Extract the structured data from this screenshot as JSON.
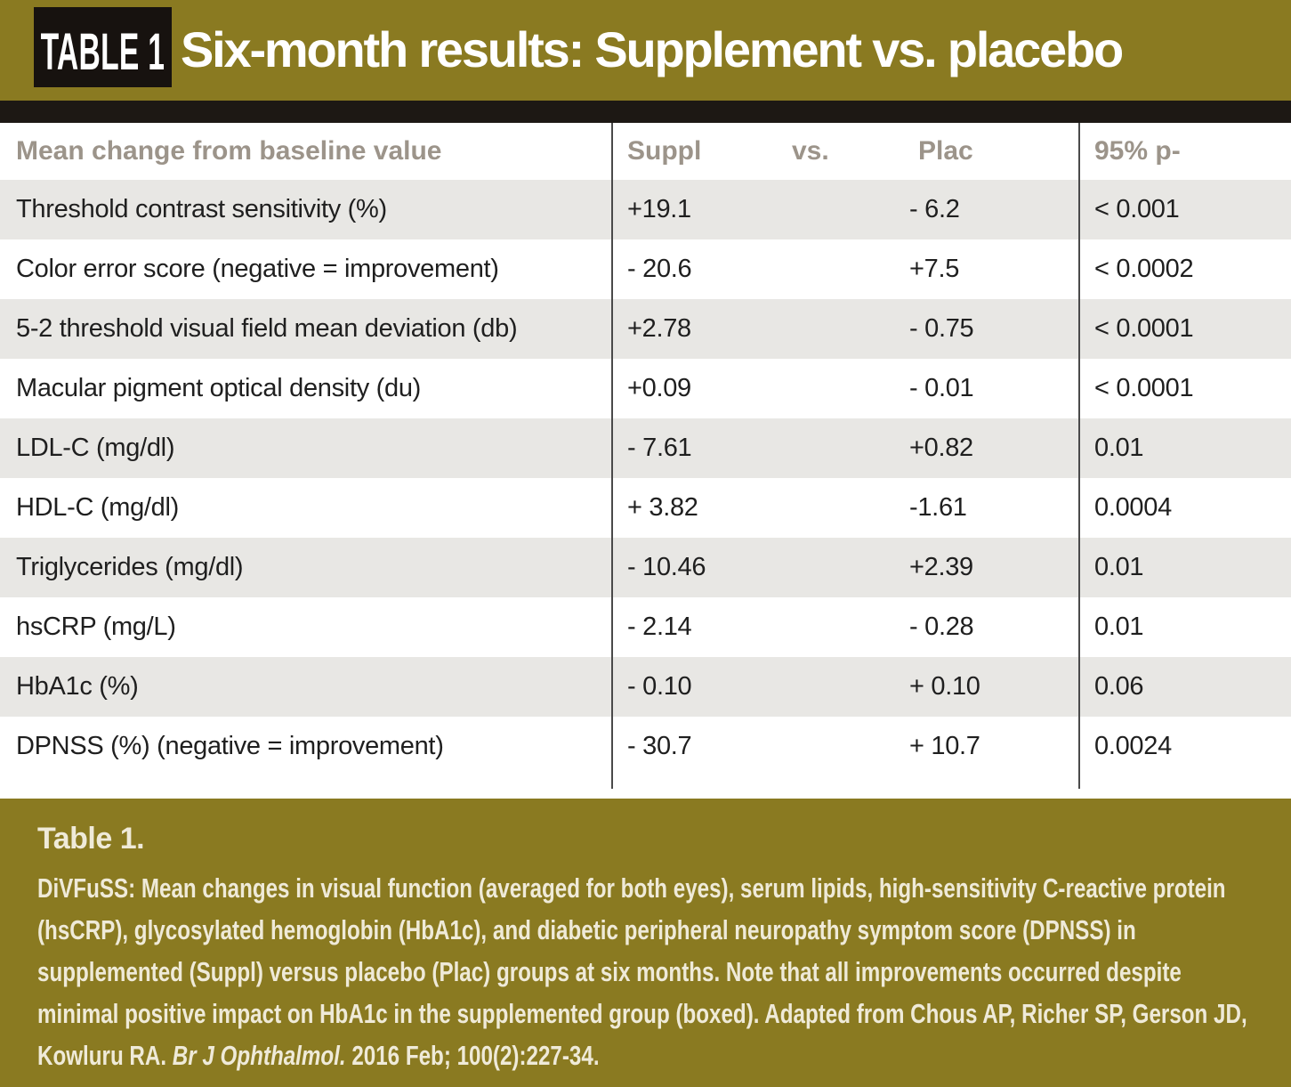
{
  "banner": {
    "tag": "TABLE 1",
    "title": "Six-month results: Supplement vs. placebo"
  },
  "table": {
    "col1_header": "Mean change from baseline value",
    "col2_header": {
      "suppl": "Suppl",
      "vs": "vs.",
      "plac": "Plac"
    },
    "col3_header": "95% p-",
    "rows": [
      {
        "label": "Threshold contrast sensitivity (%)",
        "suppl": "+19.1",
        "plac": "- 6.2",
        "p": "< 0.001"
      },
      {
        "label": "Color error score (negative = improvement)",
        "suppl": "- 20.6",
        "plac": "+7.5",
        "p": "< 0.0002"
      },
      {
        "label": "5-2 threshold visual field mean deviation (db)",
        "suppl": "+2.78",
        "plac": "- 0.75",
        "p": "< 0.0001"
      },
      {
        "label": "Macular pigment optical density (du)",
        "suppl": "+0.09",
        "plac": "- 0.01",
        "p": "< 0.0001"
      },
      {
        "label": "LDL-C (mg/dl)",
        "suppl": "- 7.61",
        "plac": "+0.82",
        "p": "0.01"
      },
      {
        "label": "HDL-C (mg/dl)",
        "suppl": "+ 3.82",
        "plac": "-1.61",
        "p": "0.0004"
      },
      {
        "label": "Triglycerides (mg/dl)",
        "suppl": "- 10.46",
        "plac": "+2.39",
        "p": "0.01"
      },
      {
        "label": "hsCRP (mg/L)",
        "suppl": "- 2.14",
        "plac": "- 0.28",
        "p": "0.01"
      },
      {
        "label": "HbA1c (%)",
        "suppl": "- 0.10",
        "plac": "+ 0.10",
        "p": "0.06"
      },
      {
        "label": "DPNSS (%) (negative = improvement)",
        "suppl": "- 30.7",
        "plac": "+ 10.7",
        "p": "0.0024"
      }
    ]
  },
  "chart_data": {
    "type": "table",
    "title": "Six-month results: Supplement vs. placebo",
    "columns": [
      "Mean change from baseline value",
      "Suppl",
      "Plac",
      "95% p-"
    ],
    "rows": [
      [
        "Threshold contrast sensitivity (%)",
        "+19.1",
        "- 6.2",
        "< 0.001"
      ],
      [
        "Color error score (negative = improvement)",
        "- 20.6",
        "+7.5",
        "< 0.0002"
      ],
      [
        "5-2 threshold visual field mean deviation (db)",
        "+2.78",
        "- 0.75",
        "< 0.0001"
      ],
      [
        "Macular pigment optical density (du)",
        "+0.09",
        "- 0.01",
        "< 0.0001"
      ],
      [
        "LDL-C (mg/dl)",
        "- 7.61",
        "+0.82",
        "0.01"
      ],
      [
        "HDL-C (mg/dl)",
        "+ 3.82",
        "-1.61",
        "0.0004"
      ],
      [
        "Triglycerides (mg/dl)",
        "- 10.46",
        "+2.39",
        "0.01"
      ],
      [
        "hsCRP (mg/L)",
        "- 2.14",
        "- 0.28",
        "0.01"
      ],
      [
        "HbA1c (%)",
        "- 0.10",
        "+ 0.10",
        "0.06"
      ],
      [
        "DPNSS (%) (negative = improvement)",
        "- 30.7",
        "+ 10.7",
        "0.0024"
      ]
    ]
  },
  "caption": {
    "heading": "Table 1.",
    "body_before": "DiVFuSS: Mean changes in visual function (averaged for both eyes), serum lipids, high-sensitivity C-reactive protein (hsCRP), glycosylated hemoglobin (HbA1c), and diabetic peripheral neuropathy symptom score (DPNSS) in supplemented (Suppl) versus placebo (Plac) groups at six months.  Note that all improvements occurred despite minimal positive impact on HbA1c in the supplemented group (boxed).  Adapted from Chous AP, Richer SP, Gerson JD, Kowluru RA. ",
    "journal": "Br J Ophthalmol.",
    "body_after": " 2016 Feb; 100(2):227-34."
  },
  "colors": {
    "olive_band": "#8a7a21",
    "tag_box_black": "#17120f",
    "divider_bar": "#1d1814",
    "row_stripe_gray": "#e8e7e4",
    "header_text_gray": "#9c948a",
    "caption_text_cream": "#efead8"
  }
}
